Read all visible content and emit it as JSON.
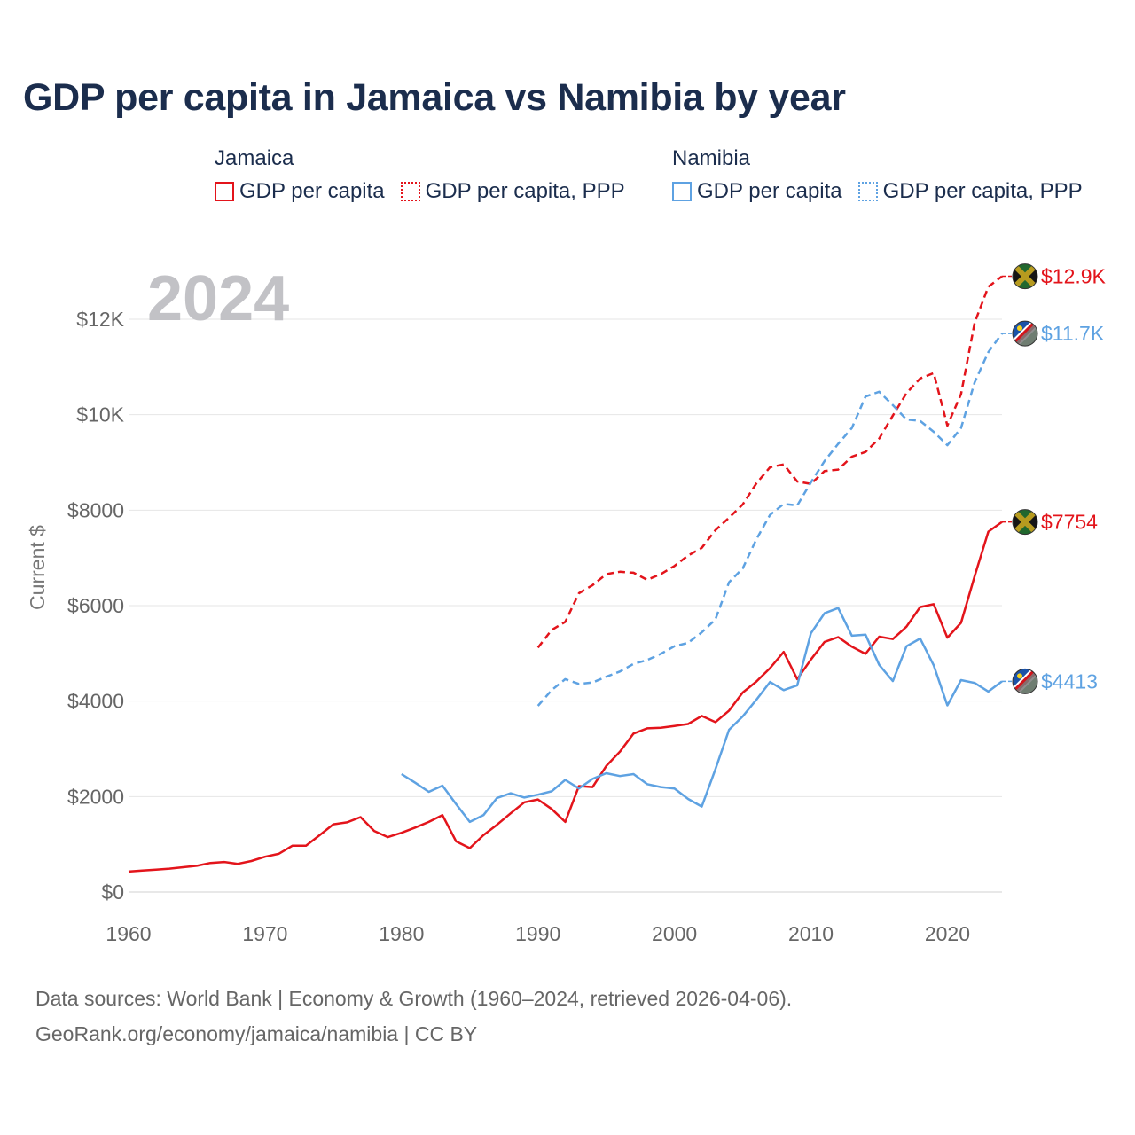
{
  "title": "GDP per capita in Jamaica vs Namibia by year",
  "legend": [
    {
      "group": "Jamaica",
      "entries": [
        {
          "label": "GDP per capita",
          "color": "#e3141b",
          "style": "solid"
        },
        {
          "label": "GDP per capita, PPP",
          "color": "#e3141b",
          "style": "dotted"
        }
      ]
    },
    {
      "group": "Namibia",
      "entries": [
        {
          "label": "GDP per capita",
          "color": "#5ea2e2",
          "style": "solid"
        },
        {
          "label": "GDP per capita, PPP",
          "color": "#5ea2e2",
          "style": "dotted"
        }
      ]
    }
  ],
  "footer": {
    "line1": "Data sources: World Bank | Economy & Growth (1960–2024, retrieved 2026-04-06).",
    "line2": "GeoRank.org/economy/jamaica/namibia | CC BY"
  },
  "chart_data": {
    "type": "line",
    "title": "GDP per capita in Jamaica vs Namibia by year",
    "year_watermark": "2024",
    "xlabel": "",
    "ylabel": "Current $",
    "xlim": [
      1960,
      2024
    ],
    "ylim": [
      0,
      13000
    ],
    "x_ticks": [
      1960,
      1970,
      1980,
      1990,
      2000,
      2010,
      2020
    ],
    "y_ticks": [
      {
        "value": 0,
        "label": "$0"
      },
      {
        "value": 2000,
        "label": "$2000"
      },
      {
        "value": 4000,
        "label": "$4000"
      },
      {
        "value": 6000,
        "label": "$6000"
      },
      {
        "value": 8000,
        "label": "$8000"
      },
      {
        "value": 10000,
        "label": "$10K"
      },
      {
        "value": 12000,
        "label": "$12K"
      }
    ],
    "grid": true,
    "series": [
      {
        "name": "Jamaica GDP per capita",
        "country": "Jamaica",
        "color": "#e3141b",
        "dashed": false,
        "end_label": "$7754",
        "start_year": 1960,
        "values": [
          430,
          450,
          470,
          490,
          520,
          550,
          610,
          630,
          590,
          650,
          740,
          800,
          970,
          970,
          1190,
          1420,
          1460,
          1570,
          1280,
          1150,
          1240,
          1350,
          1470,
          1610,
          1060,
          920,
          1190,
          1410,
          1650,
          1880,
          1940,
          1740,
          1470,
          2220,
          2200,
          2640,
          2940,
          3320,
          3430,
          3440,
          3480,
          3520,
          3690,
          3560,
          3800,
          4180,
          4410,
          4690,
          5030,
          4460,
          4870,
          5240,
          5340,
          5140,
          4990,
          5350,
          5300,
          5560,
          5970,
          6030,
          5330,
          5640,
          6620,
          7550,
          7754
        ]
      },
      {
        "name": "Jamaica GDP per capita, PPP",
        "country": "Jamaica",
        "color": "#e3141b",
        "dashed": true,
        "end_label": "$12.9K",
        "start_year": 1990,
        "values": [
          5120,
          5490,
          5660,
          6260,
          6430,
          6660,
          6710,
          6690,
          6540,
          6660,
          6830,
          7050,
          7210,
          7580,
          7840,
          8120,
          8560,
          8900,
          8960,
          8600,
          8550,
          8820,
          8850,
          9120,
          9220,
          9500,
          9980,
          10450,
          10760,
          10870,
          9770,
          10430,
          11930,
          12680,
          12900
        ]
      },
      {
        "name": "Namibia GDP per capita",
        "country": "Namibia",
        "color": "#5ea2e2",
        "dashed": false,
        "end_label": "$4413",
        "start_year": 1980,
        "values": [
          2470,
          2290,
          2100,
          2230,
          1840,
          1470,
          1610,
          1970,
          2070,
          1980,
          2040,
          2110,
          2350,
          2170,
          2370,
          2490,
          2430,
          2470,
          2260,
          2200,
          2170,
          1950,
          1790,
          2570,
          3400,
          3680,
          4030,
          4400,
          4230,
          4330,
          5420,
          5840,
          5950,
          5370,
          5390,
          4760,
          4420,
          5150,
          5310,
          4750,
          3910,
          4440,
          4380,
          4200,
          4413
        ]
      },
      {
        "name": "Namibia GDP per capita, PPP",
        "country": "Namibia",
        "color": "#5ea2e2",
        "dashed": true,
        "end_label": "$11.7K",
        "start_year": 1990,
        "values": [
          3900,
          4230,
          4460,
          4360,
          4390,
          4510,
          4620,
          4780,
          4860,
          4990,
          5150,
          5220,
          5440,
          5710,
          6490,
          6780,
          7390,
          7900,
          8130,
          8100,
          8580,
          9030,
          9390,
          9720,
          10380,
          10480,
          10200,
          9900,
          9870,
          9640,
          9360,
          9720,
          10680,
          11310,
          11700
        ]
      }
    ]
  }
}
